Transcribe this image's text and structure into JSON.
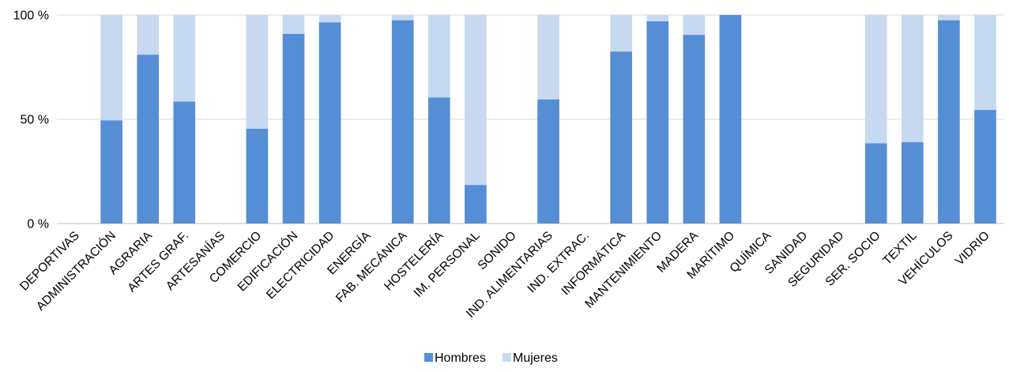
{
  "chart_data": {
    "type": "bar",
    "stacked": true,
    "percent_stacked": true,
    "categories": [
      "DEPORTIVAS",
      "ADMINISTRACIÓN",
      "AGRARIA",
      "ARTES GRAF.",
      "ARTESANÍAS",
      "COMERCIO",
      "EDIFICACIÓN",
      "ELECTRICIDAD",
      "ENERGÍA",
      "FAB. MECÁNICA",
      "HOSTELERÍA",
      "IM. PERSONAL",
      "SONIDO",
      "IND. ALIMENTARIAS",
      "IND. EXTRAC.",
      "INFORMÁTICA",
      "MANTENIMIENTO",
      "MADERA",
      "MARÍTIMO",
      "QUÍMICA",
      "SANIDAD",
      "SEGURIDAD",
      "SER. SOCIO",
      "TEXTIL",
      "VEHÍCULOS",
      "VIDRIO"
    ],
    "series": [
      {
        "name": "Hombres",
        "color": "#558ed5",
        "values": [
          0,
          49.5,
          81,
          58.5,
          0,
          45.5,
          91,
          96.5,
          0,
          97.5,
          60.5,
          18.5,
          0,
          59.5,
          0,
          82.5,
          97,
          90.5,
          100,
          0,
          0,
          0,
          38.5,
          39,
          97.5,
          54.5
        ]
      },
      {
        "name": "Mujeres",
        "color": "#c6d9f1",
        "values": [
          0,
          50.5,
          19,
          41.5,
          0,
          54.5,
          9,
          3.5,
          0,
          2.5,
          39.5,
          81.5,
          0,
          40.5,
          0,
          17.5,
          3,
          9.5,
          0,
          0,
          0,
          0,
          61.5,
          61,
          2.5,
          45.5
        ]
      }
    ],
    "y_ticks": [
      "0 %",
      "50 %",
      "100 %"
    ],
    "ylim": [
      0,
      100
    ],
    "grid": true,
    "gridline_color": "#d9d9d9",
    "legend_position": "bottom"
  }
}
